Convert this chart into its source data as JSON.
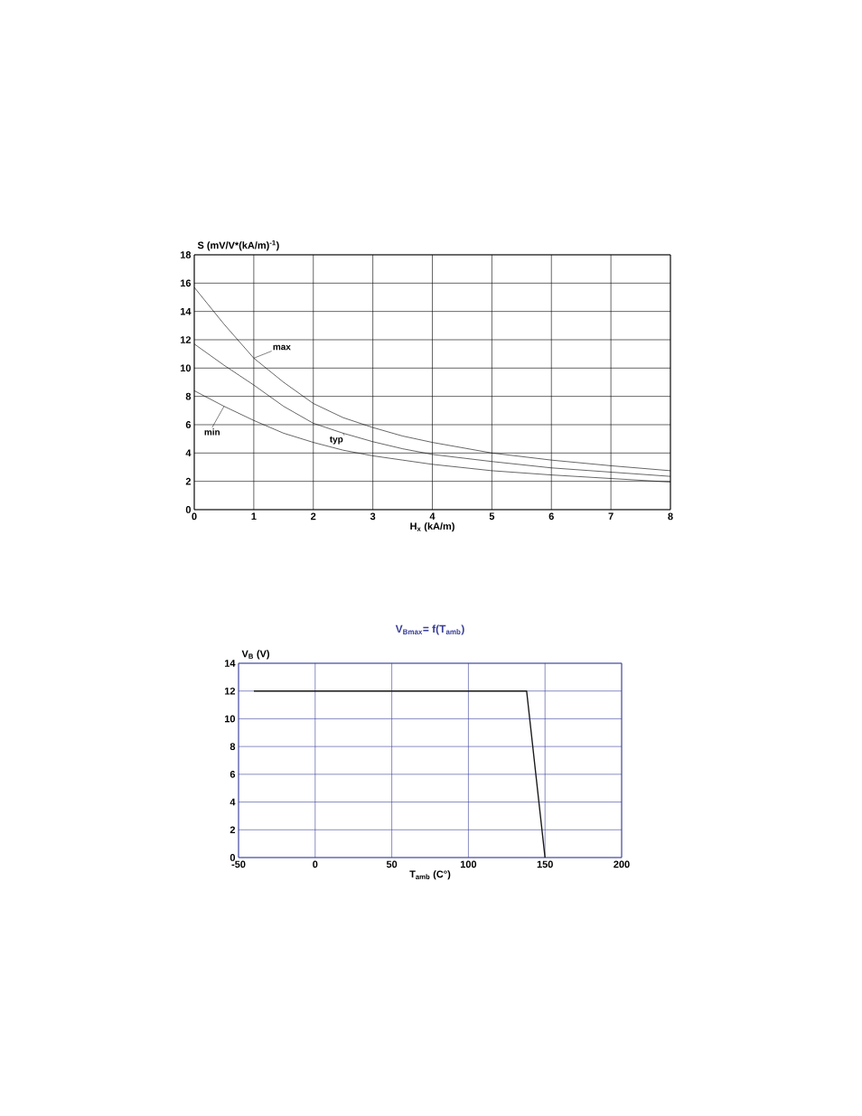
{
  "chart_data": [
    {
      "type": "line",
      "xlabel": "H$_{x}$ (kA/m)",
      "ylabel": "S (mV/V*(kA/m)$^{-1}$)",
      "x": [
        0,
        0.5,
        1,
        1.5,
        2,
        2.5,
        3,
        3.5,
        4,
        5,
        6,
        7,
        8
      ],
      "series": [
        {
          "name": "max",
          "color": "#000000",
          "values": [
            15.7,
            13.1,
            10.7,
            9.0,
            7.5,
            6.5,
            5.8,
            5.2,
            4.75,
            4.0,
            3.5,
            3.1,
            2.75
          ]
        },
        {
          "name": "typ",
          "color": "#000000",
          "values": [
            11.7,
            10.2,
            8.8,
            7.3,
            6.1,
            5.4,
            4.8,
            4.3,
            3.9,
            3.4,
            2.95,
            2.65,
            2.35
          ]
        },
        {
          "name": "min",
          "color": "#000000",
          "values": [
            8.4,
            7.3,
            6.3,
            5.4,
            4.75,
            4.2,
            3.8,
            3.5,
            3.2,
            2.75,
            2.45,
            2.2,
            1.95
          ]
        }
      ],
      "xlim": [
        0,
        8
      ],
      "ylim": [
        0,
        18
      ],
      "xticks": [
        0,
        1,
        2,
        3,
        4,
        5,
        6,
        7,
        8
      ],
      "yticks": [
        0,
        2,
        4,
        6,
        8,
        10,
        12,
        14,
        16,
        18
      ],
      "grid": true,
      "marker": "none",
      "line_style": "solid"
    },
    {
      "type": "line",
      "title": "V$_{Bmax}$= f(T$_{amb}$)",
      "xlabel": "T$_{amb}$ (C°)",
      "ylabel": "V$_{B}$ (V)",
      "x": [
        -40,
        138,
        150
      ],
      "series": [
        {
          "color": "#1a1a1a",
          "values": [
            12,
            12,
            0
          ]
        }
      ],
      "xlim": [
        -50,
        200
      ],
      "ylim": [
        0,
        14
      ],
      "xticks": [
        -50,
        0,
        50,
        100,
        150,
        200
      ],
      "yticks": [
        0,
        2,
        4,
        6,
        8,
        10,
        12,
        14
      ],
      "grid": true,
      "marker": "none",
      "line_style": "solid"
    }
  ]
}
